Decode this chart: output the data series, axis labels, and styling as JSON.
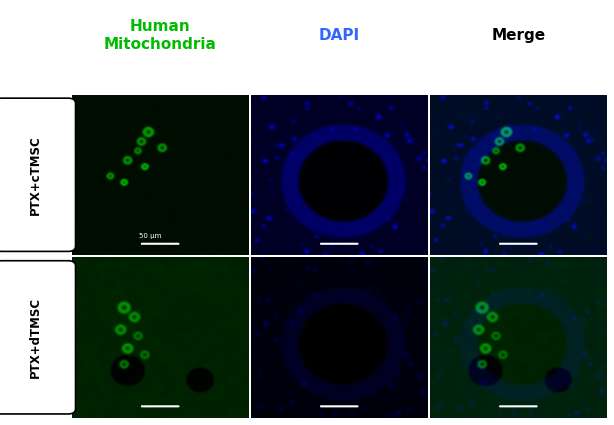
{
  "col_headers": [
    "Human\nMitochondria",
    "DAPI",
    "Merge"
  ],
  "col_header_colors": [
    "#00bb00",
    "#3366ff",
    "#000000"
  ],
  "col_header_fontsizes": [
    11,
    11,
    11
  ],
  "col_header_fontweights": [
    "bold",
    "bold",
    "bold"
  ],
  "row_labels": [
    "PTX+cTMSC",
    "PTX+dTMSC"
  ],
  "row_label_color": "#000000",
  "row_label_fontsize": 8.5,
  "scale_bar_text": "50 μm",
  "background_color": "#ffffff",
  "figure_width": 6.14,
  "figure_height": 4.25
}
